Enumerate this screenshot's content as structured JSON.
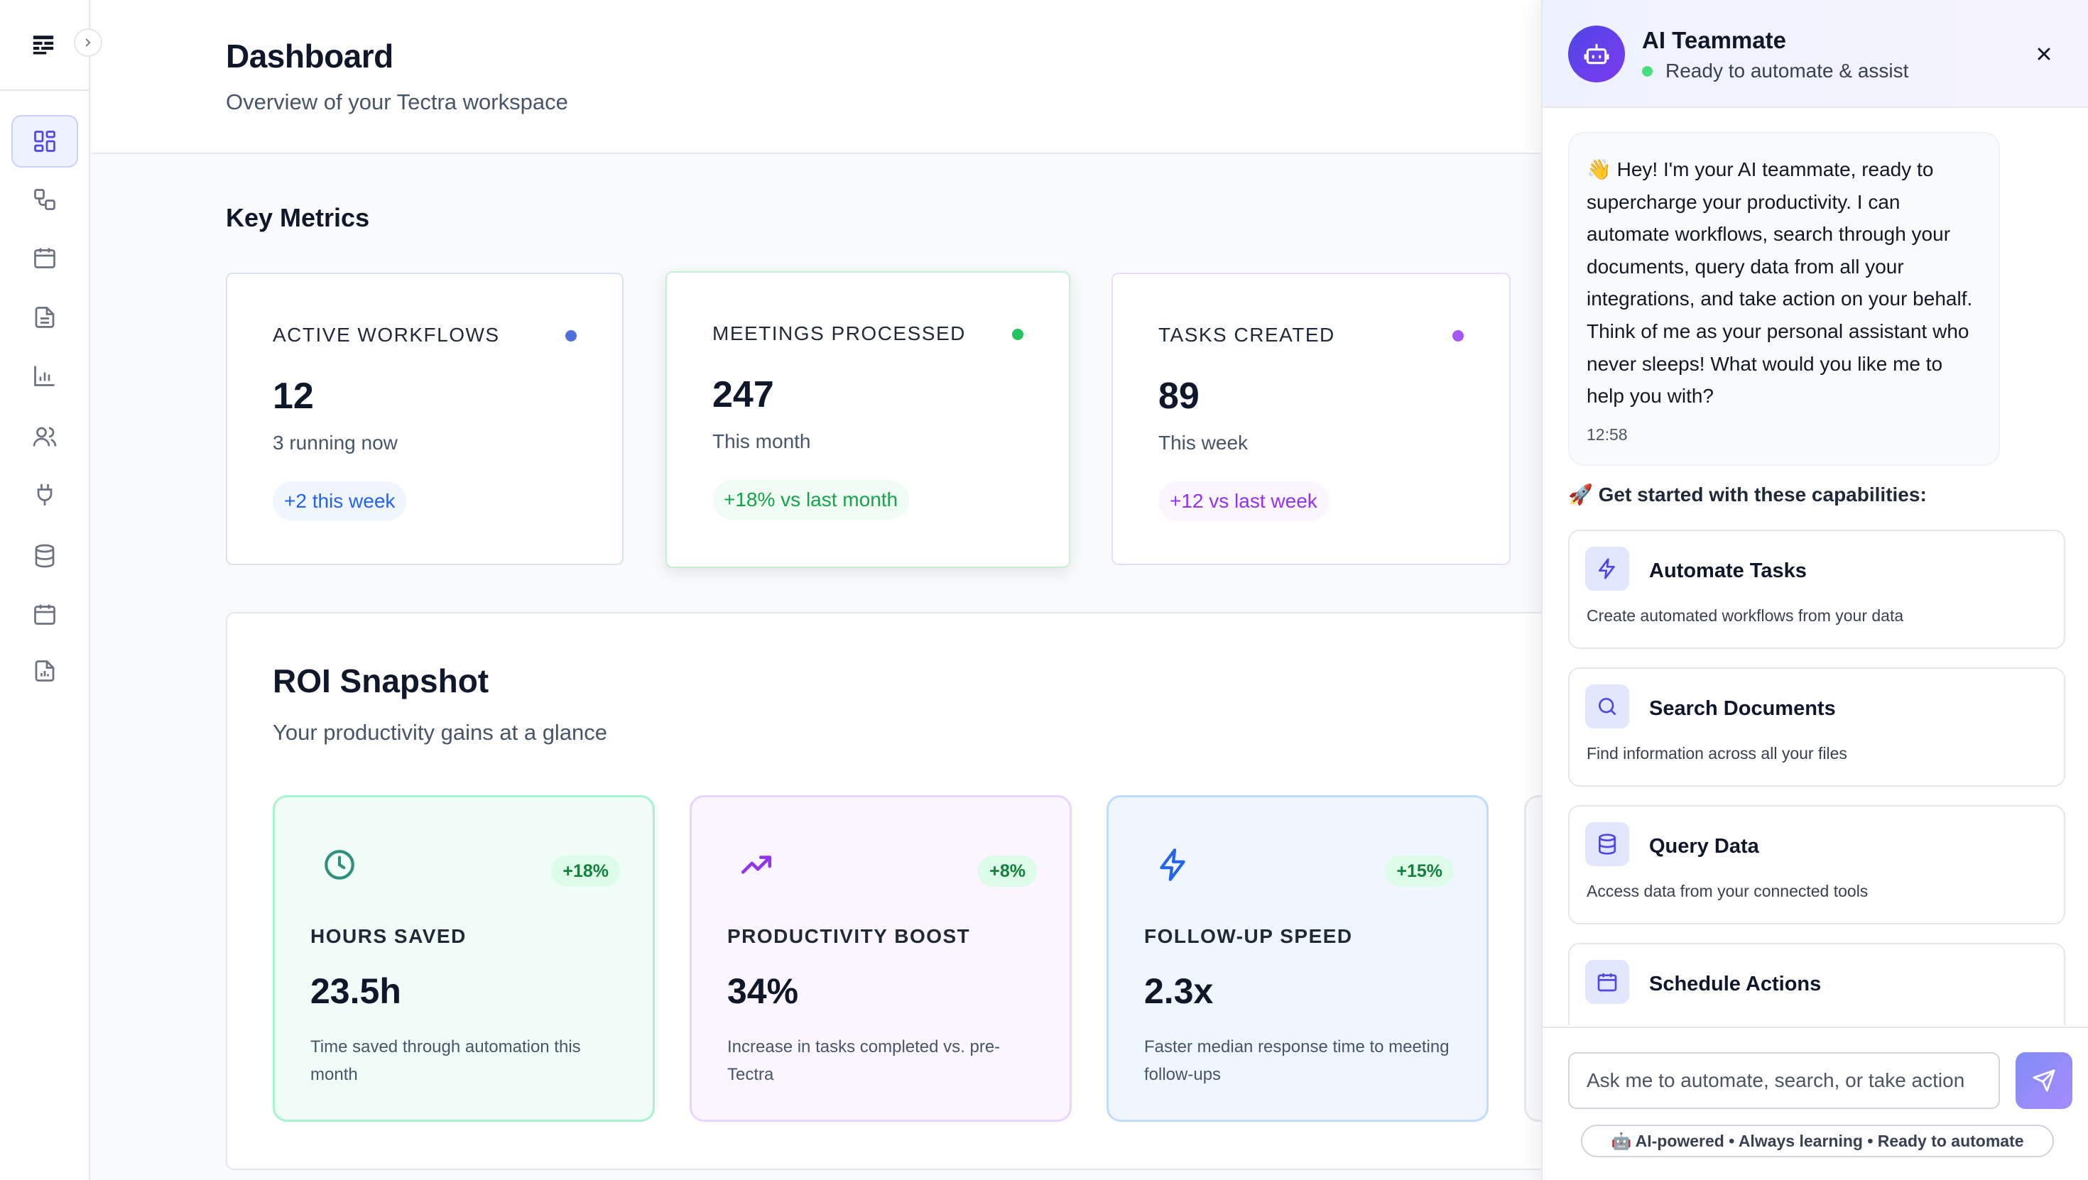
{
  "header": {
    "title": "Dashboard",
    "subtitle": "Overview of your Tectra workspace"
  },
  "sidebar": {
    "items": [
      {
        "icon": "dashboard-icon",
        "active": true
      },
      {
        "icon": "workflow-icon"
      },
      {
        "icon": "calendar-icon"
      },
      {
        "icon": "document-icon"
      },
      {
        "icon": "bar-chart-icon"
      },
      {
        "icon": "users-icon"
      },
      {
        "icon": "plug-icon"
      },
      {
        "icon": "database-icon"
      },
      {
        "icon": "calendar-icon"
      },
      {
        "icon": "report-icon"
      }
    ]
  },
  "metrics": {
    "title": "Key Metrics",
    "cards": [
      {
        "label": "ACTIVE WORKFLOWS",
        "value": "12",
        "sub": "3 running now",
        "badge": "+2 this week",
        "color": "#2563eb",
        "dot": "#4f6fdc"
      },
      {
        "label": "MEETINGS PROCESSED",
        "value": "247",
        "sub": "This month",
        "badge": "+18% vs last month",
        "color": "#16a34a",
        "dot": "#22c55e"
      },
      {
        "label": "TASKS CREATED",
        "value": "89",
        "sub": "This week",
        "badge": "+12 vs last week",
        "color": "#9333ea",
        "dot": "#a855f7"
      }
    ]
  },
  "roi": {
    "title": "ROI Snapshot",
    "subtitle": "Your productivity gains at a glance",
    "cards": [
      {
        "icon": "clock-icon",
        "badge": "+18%",
        "label": "HOURS SAVED",
        "value": "23.5h",
        "desc": "Time saved through automation this month"
      },
      {
        "icon": "trending-up-icon",
        "badge": "+8%",
        "label": "PRODUCTIVITY BOOST",
        "value": "34%",
        "desc": "Increase in tasks completed vs. pre-Tectra"
      },
      {
        "icon": "lightning-icon",
        "badge": "+15%",
        "label": "FOLLOW-UP SPEED",
        "value": "2.3x",
        "desc": "Faster median response time to meeting follow-ups"
      }
    ]
  },
  "ai": {
    "title": "AI Teammate",
    "status": "Ready to automate & assist",
    "message": "👋 Hey! I'm your AI teammate, ready to supercharge your productivity. I can automate workflows, search through your documents, query data from all your integrations, and take action on your behalf. Think of me as your personal assistant who never sleeps! What would you like me to help you with?",
    "time": "12:58",
    "capabilities_title": "🚀 Get started with these capabilities:",
    "capabilities": [
      {
        "icon": "lightning-icon",
        "title": "Automate Tasks",
        "desc": "Create automated workflows from your data"
      },
      {
        "icon": "search-icon",
        "title": "Search Documents",
        "desc": "Find information across all your files"
      },
      {
        "icon": "database-icon",
        "title": "Query Data",
        "desc": "Access data from your connected tools"
      },
      {
        "icon": "calendar-icon",
        "title": "Schedule Actions",
        "desc": ""
      }
    ],
    "input_placeholder": "Ask me to automate, search, or take action",
    "footer_note": "🤖 AI-powered • Always learning • Ready to automate"
  }
}
